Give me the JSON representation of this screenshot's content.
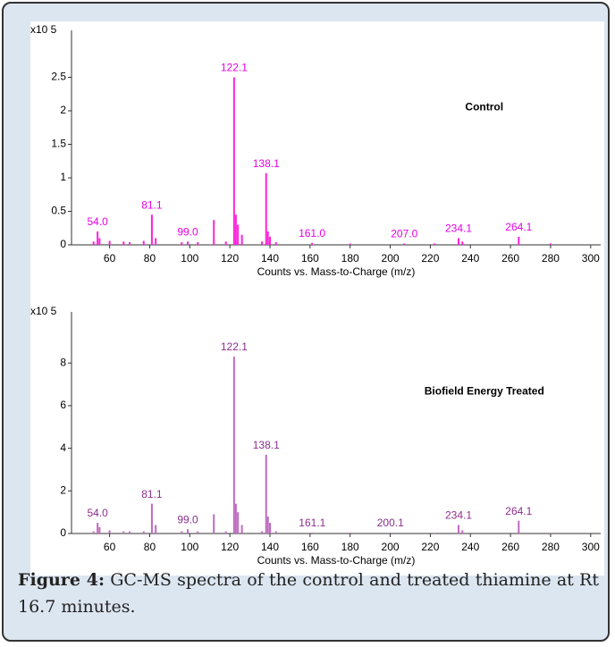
{
  "chart_data": [
    {
      "type": "bar",
      "annotation": "Control",
      "y_unit": "x10 5",
      "xlabel": "Counts vs. Mass-to-Charge (m/z)",
      "color": "#ff22dd",
      "label_color": "#e600e6",
      "xlim": [
        41,
        305
      ],
      "xticks": [
        60,
        80,
        100,
        120,
        140,
        160,
        180,
        200,
        220,
        240,
        260,
        280,
        300
      ],
      "ylim": [
        0,
        3.2
      ],
      "yticks": [
        0,
        0.5,
        1,
        1.5,
        2,
        2.5
      ],
      "x": [
        52,
        54,
        55,
        60,
        67,
        70,
        77,
        81.1,
        83,
        96,
        99,
        104,
        112,
        118,
        122.1,
        123,
        124,
        126,
        136,
        138.1,
        139,
        140,
        143,
        161,
        180,
        207,
        222,
        234.1,
        236,
        264.1,
        280
      ],
      "values": [
        0.05,
        0.2,
        0.1,
        0.06,
        0.05,
        0.04,
        0.06,
        0.45,
        0.1,
        0.04,
        0.05,
        0.04,
        0.37,
        0.05,
        2.5,
        0.45,
        0.3,
        0.15,
        0.05,
        1.07,
        0.2,
        0.12,
        0.04,
        0.03,
        0.02,
        0.02,
        0.02,
        0.1,
        0.05,
        0.12,
        0.02
      ],
      "labels": [
        null,
        "54.0",
        null,
        null,
        null,
        null,
        null,
        "81.1",
        null,
        null,
        "99.0",
        null,
        null,
        null,
        "122.1",
        null,
        null,
        null,
        null,
        "138.1",
        null,
        null,
        null,
        "161.0",
        null,
        "207.0",
        null,
        "234.1",
        null,
        "264.1",
        null
      ]
    },
    {
      "type": "bar",
      "annotation": "Biofield Energy Treated",
      "y_unit": "x10 5",
      "xlabel": "Counts vs. Mass-to-Charge (m/z)",
      "color": "#c06ac0",
      "label_color": "#8b2f8b",
      "xlim": [
        41,
        305
      ],
      "xticks": [
        60,
        80,
        100,
        120,
        140,
        160,
        180,
        200,
        220,
        240,
        260,
        280,
        300
      ],
      "ylim": [
        0,
        10.4
      ],
      "yticks": [
        0,
        2,
        4,
        6,
        8
      ],
      "x": [
        52,
        54,
        55,
        60,
        67,
        70,
        77,
        81.1,
        83,
        96,
        99,
        104,
        112,
        118,
        122.1,
        123,
        124,
        126,
        136,
        138.1,
        139,
        140,
        143,
        161.1,
        180,
        200.1,
        222,
        234.1,
        236,
        264.1,
        280
      ],
      "values": [
        0.1,
        0.5,
        0.3,
        0.15,
        0.1,
        0.1,
        0.1,
        1.4,
        0.4,
        0.1,
        0.2,
        0.1,
        0.9,
        0.1,
        8.3,
        1.4,
        1.0,
        0.4,
        0.1,
        3.7,
        0.8,
        0.5,
        0.1,
        0.05,
        0.04,
        0.04,
        0.03,
        0.4,
        0.15,
        0.6,
        0.03
      ],
      "labels": [
        null,
        "54.0",
        null,
        null,
        null,
        null,
        null,
        "81.1",
        null,
        null,
        "99.0",
        null,
        null,
        null,
        "122.1",
        null,
        null,
        null,
        null,
        "138.1",
        null,
        null,
        null,
        "161.1",
        null,
        "200.1",
        null,
        "234.1",
        null,
        "264.1",
        null
      ]
    }
  ],
  "caption": {
    "label": "Figure 4:",
    "text": "GC-MS spectra of the control and treated thiamine at Rt 16.7 minutes."
  }
}
